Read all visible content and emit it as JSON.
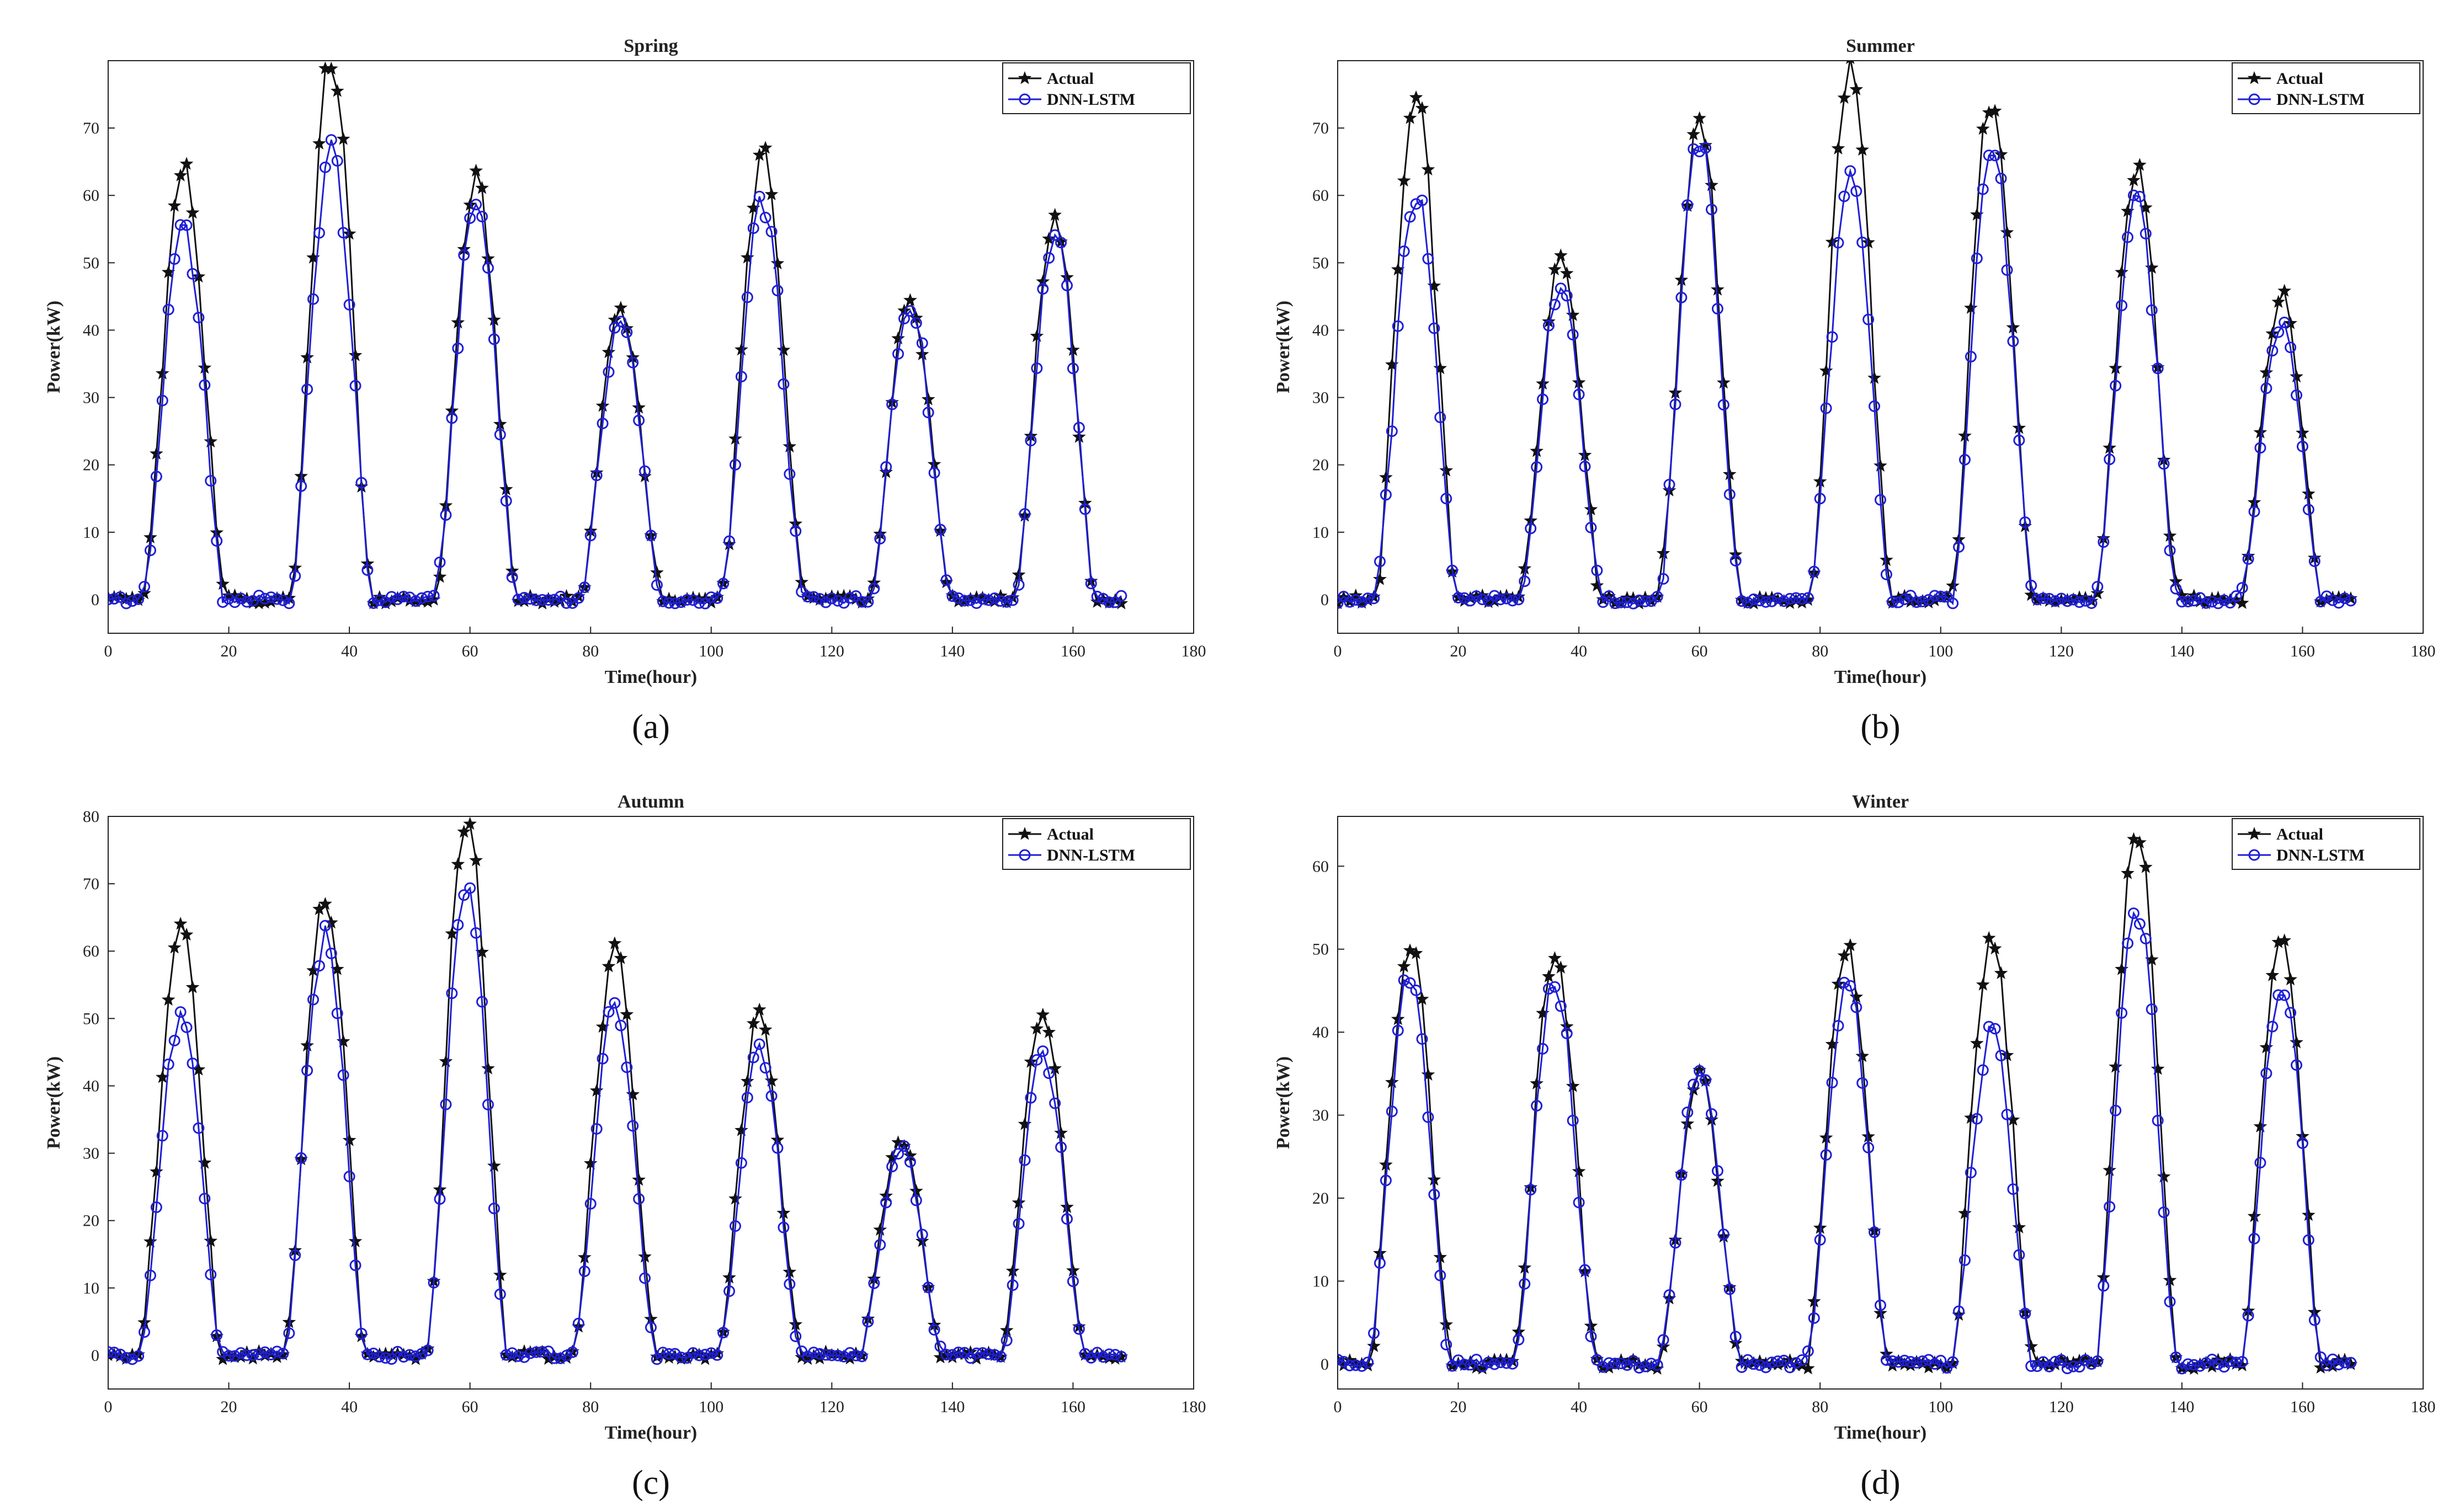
{
  "figure": {
    "legend": {
      "actual_label": "Actual",
      "model_label": "DNN-LSTM"
    },
    "colors": {
      "actual": "#111111",
      "model": "#1f1fd6",
      "axis": "#222222"
    }
  },
  "chart_data": [
    {
      "type": "line",
      "panel": "a",
      "caption": "(a)",
      "title": "Spring",
      "xlabel": "Time(hour)",
      "ylabel": "Power(kW)",
      "xlim": [
        0,
        180
      ],
      "ylim": [
        -5,
        80
      ],
      "xticks": [
        0,
        20,
        40,
        60,
        80,
        100,
        120,
        140,
        160,
        180
      ],
      "yticks": [
        0,
        10,
        20,
        30,
        40,
        50,
        60,
        70
      ],
      "legend_position": "top-right",
      "series": [
        {
          "name": "Actual",
          "marker": "star",
          "days": [
            {
              "peak_hour": 12.5,
              "peak": 64
            },
            {
              "peak_hour": 37,
              "peak": 80
            },
            {
              "peak_hour": 61,
              "peak": 62
            },
            {
              "peak_hour": 85,
              "peak": 43
            },
            {
              "peak_hour": 108.5,
              "peak": 66
            },
            {
              "peak_hour": 133,
              "peak": 45
            },
            {
              "peak_hour": 157,
              "peak": 57
            }
          ]
        },
        {
          "name": "DNN-LSTM",
          "marker": "circle",
          "days": [
            {
              "peak_hour": 12.5,
              "peak": 55
            },
            {
              "peak_hour": 37,
              "peak": 67
            },
            {
              "peak_hour": 61,
              "peak": 59
            },
            {
              "peak_hour": 85,
              "peak": 41
            },
            {
              "peak_hour": 108.5,
              "peak": 59
            },
            {
              "peak_hour": 133,
              "peak": 44
            },
            {
              "peak_hour": 157,
              "peak": 54
            }
          ]
        }
      ]
    },
    {
      "type": "line",
      "panel": "b",
      "caption": "(b)",
      "title": "Summer",
      "xlabel": "Time(hour)",
      "ylabel": "Power(kW)",
      "xlim": [
        0,
        180
      ],
      "ylim": [
        -5,
        80
      ],
      "xticks": [
        0,
        20,
        40,
        60,
        80,
        100,
        120,
        140,
        160,
        180
      ],
      "yticks": [
        0,
        10,
        20,
        30,
        40,
        50,
        60,
        70
      ],
      "legend_position": "top-right",
      "series": [
        {
          "name": "Actual",
          "marker": "star",
          "days": [
            {
              "peak_hour": 13,
              "peak": 74
            },
            {
              "peak_hour": 37,
              "peak": 51
            },
            {
              "peak_hour": 60,
              "peak": 72
            },
            {
              "peak_hour": 85,
              "peak": 79
            },
            {
              "peak_hour": 108.5,
              "peak": 75
            },
            {
              "peak_hour": 132.5,
              "peak": 64
            },
            {
              "peak_hour": 156.5,
              "peak": 45
            }
          ]
        },
        {
          "name": "DNN-LSTM",
          "marker": "circle",
          "days": [
            {
              "peak_hour": 13,
              "peak": 60
            },
            {
              "peak_hour": 37,
              "peak": 47
            },
            {
              "peak_hour": 60,
              "peak": 68
            },
            {
              "peak_hour": 85,
              "peak": 62
            },
            {
              "peak_hour": 108.5,
              "peak": 67
            },
            {
              "peak_hour": 132.5,
              "peak": 59
            },
            {
              "peak_hour": 156.5,
              "peak": 41
            }
          ]
        }
      ]
    },
    {
      "type": "line",
      "panel": "c",
      "caption": "(c)",
      "title": "Autumn",
      "xlabel": "Time(hour)",
      "ylabel": "Power(kW)",
      "xlim": [
        0,
        180
      ],
      "ylim": [
        -5,
        80
      ],
      "xticks": [
        0,
        20,
        40,
        60,
        80,
        100,
        120,
        140,
        160,
        180
      ],
      "yticks": [
        0,
        10,
        20,
        30,
        40,
        50,
        60,
        70,
        80
      ],
      "legend_position": "top-right",
      "series": [
        {
          "name": "Actual",
          "marker": "star",
          "days": [
            {
              "peak_hour": 12,
              "peak": 65
            },
            {
              "peak_hour": 36,
              "peak": 68
            },
            {
              "peak_hour": 59.5,
              "peak": 80
            },
            {
              "peak_hour": 84,
              "peak": 60
            },
            {
              "peak_hour": 108,
              "peak": 50
            },
            {
              "peak_hour": 131.5,
              "peak": 32
            },
            {
              "peak_hour": 155,
              "peak": 51
            }
          ]
        },
        {
          "name": "DNN-LSTM",
          "marker": "circle",
          "days": [
            {
              "peak_hour": 12,
              "peak": 50
            },
            {
              "peak_hour": 36,
              "peak": 62
            },
            {
              "peak_hour": 59.5,
              "peak": 70
            },
            {
              "peak_hour": 84,
              "peak": 52
            },
            {
              "peak_hour": 108,
              "peak": 45
            },
            {
              "peak_hour": 131.5,
              "peak": 31
            },
            {
              "peak_hour": 155,
              "peak": 45
            }
          ]
        }
      ]
    },
    {
      "type": "line",
      "panel": "d",
      "caption": "(d)",
      "title": "Winter",
      "xlabel": "Time(hour)",
      "ylabel": "Power(kW)",
      "xlim": [
        0,
        180
      ],
      "ylim": [
        -3,
        66
      ],
      "xticks": [
        0,
        20,
        40,
        60,
        80,
        100,
        120,
        140,
        160,
        180
      ],
      "yticks": [
        0,
        10,
        20,
        30,
        40,
        50,
        60
      ],
      "legend_position": "top-right",
      "series": [
        {
          "name": "Actual",
          "marker": "star",
          "days": [
            {
              "peak_hour": 12,
              "peak": 51
            },
            {
              "peak_hour": 36,
              "peak": 50
            },
            {
              "peak_hour": 60,
              "peak": 35
            },
            {
              "peak_hour": 84.5,
              "peak": 50
            },
            {
              "peak_hour": 108.5,
              "peak": 51
            },
            {
              "peak_hour": 132.5,
              "peak": 64
            },
            {
              "peak_hour": 156.5,
              "peak": 52
            }
          ]
        },
        {
          "name": "DNN-LSTM",
          "marker": "circle",
          "days": [
            {
              "peak_hour": 12,
              "peak": 47
            },
            {
              "peak_hour": 36,
              "peak": 46
            },
            {
              "peak_hour": 60,
              "peak": 35
            },
            {
              "peak_hour": 84.5,
              "peak": 46
            },
            {
              "peak_hour": 108.5,
              "peak": 40
            },
            {
              "peak_hour": 132.5,
              "peak": 55
            },
            {
              "peak_hour": 156.5,
              "peak": 46
            }
          ]
        }
      ]
    }
  ]
}
